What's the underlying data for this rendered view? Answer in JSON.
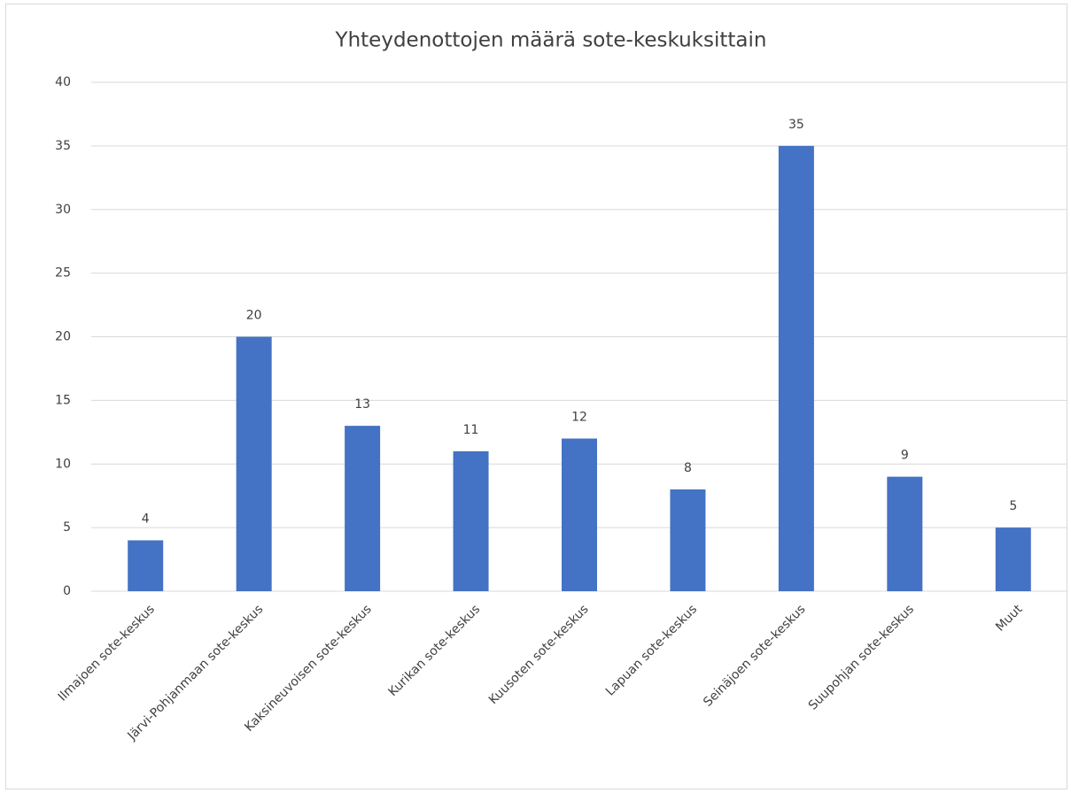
{
  "chart_data": {
    "type": "bar",
    "title": "Yhteydenottojen määrä sote-keskuksittain",
    "categories": [
      "Ilmajoen sote-keskus",
      "Järvi-Pohjanmaan sote-keskus",
      "Kaksineuvoisen sote-keskus",
      "Kurikan sote-keskus",
      "Kuusoten sote-keskus",
      "Lapuan sote-keskus",
      "Seinäjoen sote-keskus",
      "Suupohjan sote-keskus",
      "Muut"
    ],
    "values": [
      4,
      20,
      13,
      11,
      12,
      8,
      35,
      9,
      5
    ],
    "color": "#4472c4",
    "ylim": [
      0,
      40
    ],
    "yticks": [
      0,
      5,
      10,
      15,
      20,
      25,
      30,
      35,
      40
    ],
    "grid": true,
    "data_labels": true
  }
}
